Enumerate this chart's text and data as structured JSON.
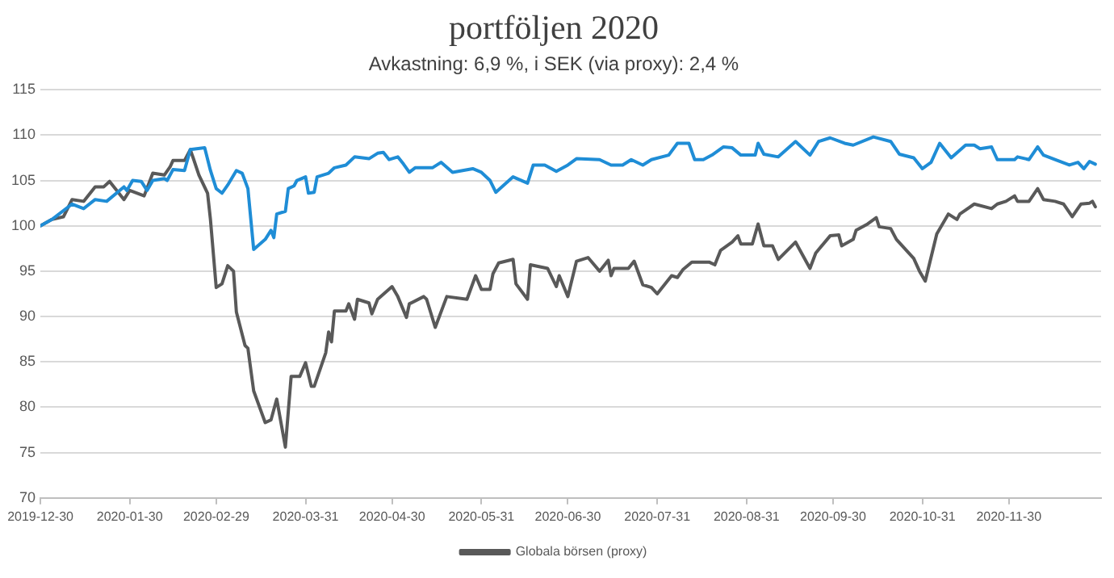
{
  "chart_data": {
    "type": "line",
    "title": "portföljen 2020",
    "subtitle": "Avkastning: 6,9 %, i SEK (via proxy): 2,4 %",
    "xlim": [
      "2019-12-30",
      "2021-01-01"
    ],
    "xticks": [
      "2019-12-30",
      "2020-01-30",
      "2020-02-29",
      "2020-03-31",
      "2020-04-30",
      "2020-05-31",
      "2020-06-30",
      "2020-07-31",
      "2020-08-31",
      "2020-09-30",
      "2020-10-31",
      "2020-11-30"
    ],
    "ylim": [
      70,
      115
    ],
    "yticks": [
      70,
      75,
      80,
      85,
      90,
      95,
      100,
      105,
      110,
      115
    ],
    "grid": "y",
    "legend": "bottom",
    "marker": "none",
    "line_style": "solid",
    "series": [
      {
        "color": "#1f8dd6",
        "x": [
          "2019-12-30",
          "2020-01-03",
          "2020-01-10",
          "2020-01-14",
          "2020-01-18",
          "2020-01-22",
          "2020-01-28",
          "2020-01-29",
          "2020-01-31",
          "2020-02-03",
          "2020-02-05",
          "2020-02-07",
          "2020-02-11",
          "2020-02-12",
          "2020-02-14",
          "2020-02-18",
          "2020-02-20",
          "2020-02-25",
          "2020-02-27",
          "2020-02-29",
          "2020-03-02",
          "2020-03-04",
          "2020-03-07",
          "2020-03-09",
          "2020-03-11",
          "2020-03-13",
          "2020-03-17",
          "2020-03-19",
          "2020-03-20",
          "2020-03-21",
          "2020-03-24",
          "2020-03-25",
          "2020-03-27",
          "2020-03-28",
          "2020-03-31",
          "2020-04-01",
          "2020-04-03",
          "2020-04-04",
          "2020-04-08",
          "2020-04-10",
          "2020-04-14",
          "2020-04-17",
          "2020-04-22",
          "2020-04-25",
          "2020-04-27",
          "2020-04-29",
          "2020-05-02",
          "2020-05-04",
          "2020-05-06",
          "2020-05-08",
          "2020-05-14",
          "2020-05-17",
          "2020-05-21",
          "2020-05-28",
          "2020-05-31",
          "2020-06-03",
          "2020-06-05",
          "2020-06-11",
          "2020-06-16",
          "2020-06-18",
          "2020-06-22",
          "2020-06-26",
          "2020-06-30",
          "2020-07-03",
          "2020-07-11",
          "2020-07-15",
          "2020-07-19",
          "2020-07-22",
          "2020-07-26",
          "2020-07-29",
          "2020-08-04",
          "2020-08-07",
          "2020-08-11",
          "2020-08-13",
          "2020-08-16",
          "2020-08-19",
          "2020-08-23",
          "2020-08-26",
          "2020-08-29",
          "2020-09-03",
          "2020-09-04",
          "2020-09-06",
          "2020-09-11",
          "2020-09-17",
          "2020-09-22",
          "2020-09-25",
          "2020-09-29",
          "2020-10-04",
          "2020-10-07",
          "2020-10-14",
          "2020-10-20",
          "2020-10-23",
          "2020-10-28",
          "2020-10-31",
          "2020-11-03",
          "2020-11-06",
          "2020-11-10",
          "2020-11-15",
          "2020-11-18",
          "2020-11-20",
          "2020-11-24",
          "2020-11-26",
          "2020-12-02",
          "2020-12-03",
          "2020-12-07",
          "2020-12-10",
          "2020-12-12",
          "2020-12-16",
          "2020-12-21",
          "2020-12-24",
          "2020-12-26",
          "2020-12-28",
          "2020-12-30"
        ],
        "values": [
          100,
          100.7,
          102.4,
          101.9,
          102.9,
          102.7,
          104.3,
          103.9,
          105.0,
          104.9,
          103.9,
          105.0,
          105.2,
          105.0,
          106.2,
          106.1,
          108.4,
          108.6,
          106.1,
          104.1,
          103.6,
          104.5,
          106.1,
          105.8,
          104.1,
          97.4,
          98.5,
          99.5,
          98.7,
          101.3,
          101.6,
          104.1,
          104.4,
          105.0,
          105.4,
          103.6,
          103.7,
          105.4,
          105.8,
          106.4,
          106.7,
          107.6,
          107.4,
          108.0,
          108.1,
          107.3,
          107.6,
          106.8,
          105.9,
          106.4,
          106.4,
          107.0,
          105.9,
          106.3,
          105.9,
          105.0,
          103.7,
          105.4,
          104.7,
          106.7,
          106.7,
          106.0,
          106.7,
          107.4,
          107.3,
          106.7,
          106.7,
          107.3,
          106.7,
          107.3,
          107.8,
          109.1,
          109.1,
          107.3,
          107.3,
          107.8,
          108.7,
          108.6,
          107.8,
          107.8,
          109.1,
          107.9,
          107.6,
          109.3,
          107.8,
          109.3,
          109.7,
          109.1,
          108.9,
          109.8,
          109.3,
          107.9,
          107.5,
          106.3,
          107.0,
          109.1,
          107.5,
          108.9,
          108.9,
          108.5,
          108.7,
          107.3,
          107.3,
          107.6,
          107.3,
          108.7,
          107.8,
          107.3,
          106.7,
          107.0,
          106.3,
          107.1,
          106.8
        ]
      },
      {
        "name": "Globala börsen (proxy)",
        "color": "#595959",
        "x": [
          "2019-12-30",
          "2020-01-03",
          "2020-01-07",
          "2020-01-10",
          "2020-01-14",
          "2020-01-18",
          "2020-01-21",
          "2020-01-23",
          "2020-01-25",
          "2020-01-28",
          "2020-01-30",
          "2020-02-04",
          "2020-02-07",
          "2020-02-11",
          "2020-02-13",
          "2020-02-14",
          "2020-02-18",
          "2020-02-20",
          "2020-02-21",
          "2020-02-23",
          "2020-02-26",
          "2020-02-27",
          "2020-02-29",
          "2020-03-02",
          "2020-03-04",
          "2020-03-06",
          "2020-03-07",
          "2020-03-10",
          "2020-03-11",
          "2020-03-13",
          "2020-03-17",
          "2020-03-19",
          "2020-03-21",
          "2020-03-24",
          "2020-03-26",
          "2020-03-29",
          "2020-03-31",
          "2020-04-02",
          "2020-04-03",
          "2020-04-07",
          "2020-04-08",
          "2020-04-09",
          "2020-04-10",
          "2020-04-14",
          "2020-04-15",
          "2020-04-17",
          "2020-04-18",
          "2020-04-22",
          "2020-04-23",
          "2020-04-25",
          "2020-04-30",
          "2020-05-02",
          "2020-05-05",
          "2020-05-06",
          "2020-05-11",
          "2020-05-12",
          "2020-05-15",
          "2020-05-19",
          "2020-05-26",
          "2020-05-29",
          "2020-05-31",
          "2020-06-03",
          "2020-06-04",
          "2020-06-06",
          "2020-06-11",
          "2020-06-12",
          "2020-06-16",
          "2020-06-17",
          "2020-06-23",
          "2020-06-26",
          "2020-06-27",
          "2020-06-30",
          "2020-07-03",
          "2020-07-07",
          "2020-07-11",
          "2020-07-14",
          "2020-07-15",
          "2020-07-16",
          "2020-07-21",
          "2020-07-23",
          "2020-07-26",
          "2020-07-29",
          "2020-07-31",
          "2020-08-05",
          "2020-08-07",
          "2020-08-09",
          "2020-08-12",
          "2020-08-18",
          "2020-08-20",
          "2020-08-22",
          "2020-08-26",
          "2020-08-28",
          "2020-08-29",
          "2020-09-02",
          "2020-09-04",
          "2020-09-06",
          "2020-09-09",
          "2020-09-11",
          "2020-09-17",
          "2020-09-22",
          "2020-09-24",
          "2020-09-29",
          "2020-10-02",
          "2020-10-03",
          "2020-10-07",
          "2020-10-08",
          "2020-10-12",
          "2020-10-15",
          "2020-10-16",
          "2020-10-20",
          "2020-10-22",
          "2020-10-28",
          "2020-10-30",
          "2020-11-01",
          "2020-11-05",
          "2020-11-09",
          "2020-11-12",
          "2020-11-13",
          "2020-11-18",
          "2020-11-24",
          "2020-11-26",
          "2020-11-29",
          "2020-12-02",
          "2020-12-03",
          "2020-12-07",
          "2020-12-10",
          "2020-12-12",
          "2020-12-16",
          "2020-12-19",
          "2020-12-22",
          "2020-12-25",
          "2020-12-28",
          "2020-12-29",
          "2020-12-30"
        ],
        "values": [
          100,
          100.7,
          101.0,
          102.9,
          102.7,
          104.3,
          104.3,
          104.9,
          104.1,
          102.9,
          103.9,
          103.3,
          105.8,
          105.6,
          106.5,
          107.2,
          107.2,
          108.4,
          107.5,
          105.6,
          103.6,
          100.7,
          93.2,
          93.6,
          95.6,
          95.0,
          90.5,
          86.8,
          86.5,
          81.8,
          78.3,
          78.6,
          80.9,
          75.6,
          83.4,
          83.4,
          84.9,
          82.3,
          82.3,
          86.0,
          88.3,
          87.2,
          90.6,
          90.6,
          91.4,
          89.7,
          91.9,
          91.5,
          90.3,
          91.9,
          93.3,
          92.2,
          89.9,
          91.4,
          92.2,
          91.9,
          88.8,
          92.2,
          91.9,
          94.5,
          93.0,
          93.0,
          94.7,
          95.9,
          96.3,
          93.6,
          91.9,
          95.7,
          95.3,
          93.3,
          94.5,
          92.2,
          96.1,
          96.5,
          95.0,
          96.2,
          94.5,
          95.3,
          95.3,
          96.1,
          93.5,
          93.2,
          92.5,
          94.5,
          94.3,
          95.2,
          96.0,
          96.0,
          95.7,
          97.3,
          98.2,
          98.9,
          98.0,
          98.0,
          100.2,
          97.8,
          97.8,
          96.3,
          98.2,
          95.3,
          97.0,
          98.9,
          99.0,
          97.8,
          98.5,
          99.5,
          100.2,
          100.9,
          99.9,
          99.7,
          98.5,
          96.4,
          95.0,
          93.9,
          99.1,
          101.3,
          100.7,
          101.3,
          102.4,
          101.9,
          102.4,
          102.7,
          103.3,
          102.7,
          102.7,
          104.1,
          102.9,
          102.7,
          102.4,
          101.0,
          102.4,
          102.5,
          102.7,
          102.1
        ]
      }
    ]
  }
}
